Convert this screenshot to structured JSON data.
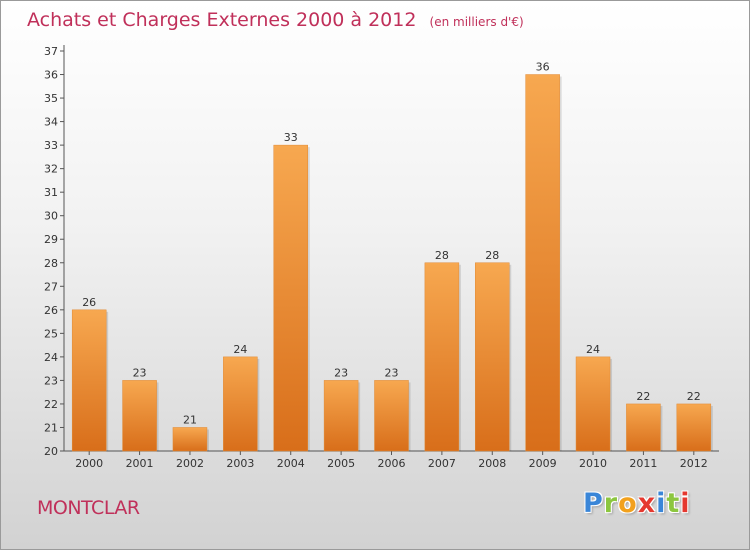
{
  "header": {
    "title": "Achats et Charges Externes 2000 à 2012",
    "subtitle": "(en milliers d'€)"
  },
  "footer": {
    "place": "MONTCLAR",
    "logo_letters": [
      {
        "ch": "P",
        "color": "#3a86d8"
      },
      {
        "ch": "r",
        "color": "#8cc63f"
      },
      {
        "ch": "o",
        "color": "#f2a11d"
      },
      {
        "ch": "x",
        "color": "#e5382f"
      },
      {
        "ch": "i",
        "color": "#3a86d8"
      },
      {
        "ch": "t",
        "color": "#8cc63f"
      },
      {
        "ch": "i",
        "color": "#e5382f"
      }
    ]
  },
  "chart_data": {
    "type": "bar",
    "categories": [
      "2000",
      "2001",
      "2002",
      "2003",
      "2004",
      "2005",
      "2006",
      "2007",
      "2008",
      "2009",
      "2010",
      "2011",
      "2012"
    ],
    "values": [
      26,
      23,
      21,
      24,
      33,
      23,
      23,
      28,
      28,
      36,
      24,
      22,
      22
    ],
    "title": "Achats et Charges Externes 2000 à 2012",
    "xlabel": "",
    "ylabel": "",
    "ylim": [
      20,
      37
    ],
    "yticks": [
      20,
      21,
      22,
      23,
      24,
      25,
      26,
      27,
      28,
      29,
      30,
      31,
      32,
      33,
      34,
      35,
      36,
      37
    ],
    "grid": false,
    "bar_color": "#f0963c",
    "axis_color": "#555555",
    "text_color": "#333333"
  }
}
